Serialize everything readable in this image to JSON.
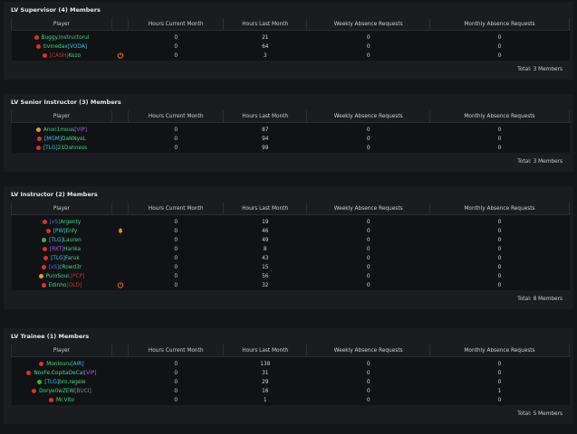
{
  "columns": [
    "Player",
    "Hours Current Month",
    "Hours Last Month",
    "Weekly Absence Requests",
    "Monthly Absence Requests"
  ],
  "sections": [
    {
      "title": "LV Supervisor (4) Members",
      "total": "Total: 3 Members",
      "rows": [
        {
          "status": "red",
          "name": [
            {
              "text": "Buggy.Instructorul",
              "color": "#3ddc84"
            }
          ],
          "current": 0,
          "last": 21,
          "weekly": 0,
          "monthly": 0
        },
        {
          "status": "red",
          "name": [
            {
              "text": "tivinedax",
              "color": "#3ddc84"
            },
            {
              "text": "[VODA]",
              "color": "#35c8e8"
            }
          ],
          "current": 0,
          "last": 64,
          "weekly": 0,
          "monthly": 0
        },
        {
          "status": "red",
          "name": [
            {
              "text": "[CASH]",
              "color": "#c0392b"
            },
            {
              "text": "Kozo",
              "color": "#3ddc84"
            }
          ],
          "icon": "power",
          "current": 0,
          "last": 3,
          "weekly": 0,
          "monthly": 0
        }
      ]
    },
    {
      "title": "LV Senior Instructor (3) Members",
      "total": "Total: 3 Members",
      "rows": [
        {
          "status": "orange",
          "name": [
            {
              "text": "Anon1mous",
              "color": "#3ddc84"
            },
            {
              "text": "[VIP]",
              "color": "#a35be0"
            }
          ],
          "current": 0,
          "last": 87,
          "weekly": 0,
          "monthly": 0
        },
        {
          "status": "red",
          "name": [
            {
              "text": "[MGM]",
              "color": "#35c8e8"
            },
            {
              "text": "DaNNyeL",
              "color": "#3ddc84"
            }
          ],
          "current": 0,
          "last": 94,
          "weekly": 0,
          "monthly": 0
        },
        {
          "status": "red",
          "name": [
            {
              "text": "[TLG]",
              "color": "#35c8e8"
            },
            {
              "text": "21Dahness",
              "color": "#3ddc84"
            }
          ],
          "current": 0,
          "last": 99,
          "weekly": 0,
          "monthly": 0
        }
      ]
    },
    {
      "title": "LV Instructor (2) Members",
      "total": "Total: 8 Members",
      "rows": [
        {
          "status": "red",
          "name": [
            {
              "text": "[xS]",
              "color": "#4a6fe0"
            },
            {
              "text": "Argenty",
              "color": "#3ddc84"
            }
          ],
          "current": 0,
          "last": 19,
          "weekly": 0,
          "monthly": 0
        },
        {
          "status": "red",
          "name": [
            {
              "text": "[PW]",
              "color": "#35c8e8"
            },
            {
              "text": "Enfy",
              "color": "#3ddc84"
            }
          ],
          "icon": "bell",
          "current": 0,
          "last": 46,
          "weekly": 0,
          "monthly": 0
        },
        {
          "status": "green",
          "name": [
            {
              "text": "[TLG]",
              "color": "#35c8e8"
            },
            {
              "text": "Lauren",
              "color": "#3ddc84"
            }
          ],
          "current": 0,
          "last": 49,
          "weekly": 0,
          "monthly": 0
        },
        {
          "status": "red",
          "name": [
            {
              "text": "[RKT]",
              "color": "#a35be0"
            },
            {
              "text": "Harika",
              "color": "#3ddc84"
            }
          ],
          "current": 0,
          "last": 8,
          "weekly": 0,
          "monthly": 0
        },
        {
          "status": "red",
          "name": [
            {
              "text": "[TLG]",
              "color": "#35c8e8"
            },
            {
              "text": "Faruk",
              "color": "#3ddc84"
            }
          ],
          "current": 0,
          "last": 43,
          "weekly": 0,
          "monthly": 0
        },
        {
          "status": "red",
          "name": [
            {
              "text": "[xS]",
              "color": "#4a6fe0"
            },
            {
              "text": "cRowd3r",
              "color": "#3ddc84"
            }
          ],
          "current": 0,
          "last": 15,
          "weekly": 0,
          "monthly": 0
        },
        {
          "status": "orange",
          "name": [
            {
              "text": "PuroSoul.",
              "color": "#3ddc84"
            },
            {
              "text": "[PCP]",
              "color": "#c0392b"
            }
          ],
          "current": 0,
          "last": 56,
          "weekly": 0,
          "monthly": 0
        },
        {
          "status": "red",
          "name": [
            {
              "text": "Edinho",
              "color": "#3ddc84"
            },
            {
              "text": "[OLD]",
              "color": "#c0392b"
            }
          ],
          "icon": "power",
          "current": 0,
          "last": 32,
          "weekly": 0,
          "monthly": 0
        }
      ]
    },
    {
      "title": "LV Trainee (1) Members",
      "total": "Total: 5 Members",
      "rows": [
        {
          "status": "red",
          "name": [
            {
              "text": "Monlouru",
              "color": "#3ddc84"
            },
            {
              "text": "[AIR]",
              "color": "#35c8e8"
            }
          ],
          "current": 0,
          "last": 138,
          "weekly": 0,
          "monthly": 0
        },
        {
          "status": "red",
          "name": [
            {
              "text": "NoxFe.CopitaDeCal",
              "color": "#3ddc84"
            },
            {
              "text": "[VIP]",
              "color": "#a35be0"
            }
          ],
          "current": 0,
          "last": 31,
          "weekly": 0,
          "monthly": 0
        },
        {
          "status": "green",
          "name": [
            {
              "text": "[TLG]",
              "color": "#35c8e8"
            },
            {
              "text": "bro.regele",
              "color": "#3ddc84"
            }
          ],
          "current": 0,
          "last": 29,
          "weekly": 0,
          "monthly": 0
        },
        {
          "status": "red",
          "name": [
            {
              "text": "Dorye0wZEW",
              "color": "#3ddc84"
            },
            {
              "text": "[BUCI]",
              "color": "#8a8a8a"
            }
          ],
          "current": 0,
          "last": 16,
          "weekly": 0,
          "monthly": 1
        },
        {
          "status": "red",
          "name": [
            {
              "text": "Mr.Vito",
              "color": "#3ddc84"
            }
          ],
          "current": 0,
          "last": 1,
          "weekly": 0,
          "monthly": 0
        }
      ]
    }
  ]
}
